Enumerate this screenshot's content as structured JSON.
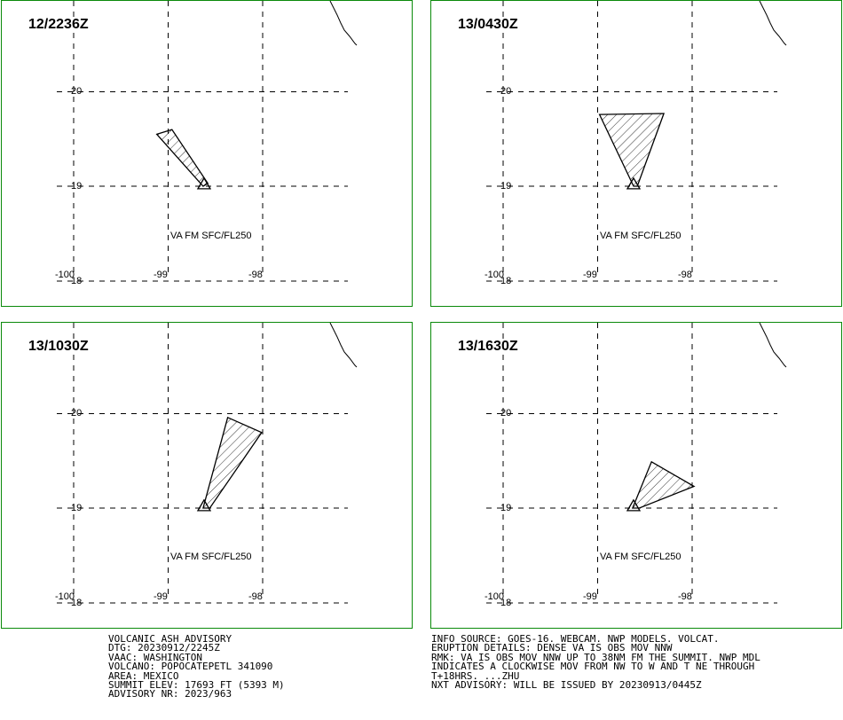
{
  "panels": [
    {
      "time": "12/2236Z",
      "flight_level": "VA FM SFC/FL250",
      "polygon": [
        [
          -99.12,
          19.55
        ],
        [
          -98.96,
          19.6
        ],
        [
          -98.58,
          19.03
        ],
        [
          -98.63,
          19.0
        ]
      ]
    },
    {
      "time": "13/0430Z",
      "flight_level": "VA FM SFC/FL250",
      "polygon": [
        [
          -98.98,
          19.76
        ],
        [
          -98.3,
          19.77
        ],
        [
          -98.58,
          19.0
        ],
        [
          -98.62,
          19.0
        ]
      ]
    },
    {
      "time": "13/1030Z",
      "flight_level": "VA FM SFC/FL250",
      "polygon": [
        [
          -98.37,
          19.96
        ],
        [
          -98.01,
          19.8
        ],
        [
          -98.56,
          19.0
        ],
        [
          -98.63,
          19.0
        ]
      ]
    },
    {
      "time": "13/1630Z",
      "flight_level": "VA FM SFC/FL250",
      "polygon": [
        [
          -98.43,
          19.49
        ],
        [
          -97.98,
          19.23
        ],
        [
          -98.56,
          19.0
        ],
        [
          -98.63,
          19.0
        ]
      ]
    }
  ],
  "grid": {
    "lon_labels": [
      "-100",
      "-99",
      "-98"
    ],
    "lat_labels": [
      "20",
      "19",
      "18"
    ],
    "lons": [
      -100,
      -99,
      -98
    ],
    "lats": [
      20,
      19,
      18
    ]
  },
  "volcano": {
    "lon": -98.62,
    "lat": 19.02
  },
  "advisory_left": [
    "VOLCANIC ASH ADVISORY",
    "DTG: 20230912/2245Z",
    "VAAC: WASHINGTON",
    "VOLCANO: POPOCATEPETL 341090",
    "AREA: MEXICO",
    "SUMMIT ELEV: 17693 FT (5393 M)",
    "ADVISORY NR: 2023/963"
  ],
  "advisory_right": [
    "INFO SOURCE: GOES-16. WEBCAM. NWP MODELS. VOLCAT.",
    "ERUPTION DETAILS: DENSE VA IS OBS MOV NNW",
    "RMK: VA IS OBS MOV NNW UP TO 38NM FM THE SUMMIT. NWP MDL",
    "INDICATES A CLOCKWISE MOV FROM NW TO W AND T NE THROUGH",
    "T+18HRS. ...ZHU",
    "NXT ADVISORY: WILL BE ISSUED BY 20230913/0445Z"
  ],
  "colors": {
    "panel_border": "#0a8a0a",
    "line": "#000000"
  }
}
